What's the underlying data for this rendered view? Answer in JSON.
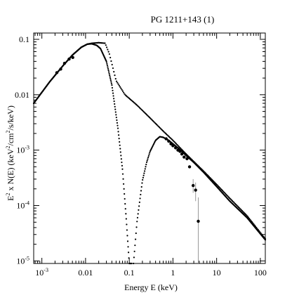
{
  "chart_data": {
    "type": "scatter",
    "title": "PG 1211+143 (1)",
    "xlabel": "Energy E (keV)",
    "ylabel_parts": [
      "E",
      "2",
      " x N(E) (keV",
      "2",
      "/cm",
      "2",
      "/s/keV)"
    ],
    "xscale": "log",
    "yscale": "log",
    "xlim": [
      0.00065,
      130
    ],
    "ylim": [
      9e-06,
      0.13
    ],
    "x_ticks": [
      {
        "value": 0.001,
        "base": "10",
        "exp": "-3"
      },
      {
        "value": 0.01,
        "label": "0.01"
      },
      {
        "value": 0.1,
        "label": "0.1"
      },
      {
        "value": 1,
        "label": "1"
      },
      {
        "value": 10,
        "label": "10"
      },
      {
        "value": 100,
        "label": "100"
      }
    ],
    "y_ticks": [
      {
        "value": 1e-05,
        "base": "10",
        "exp": "-5"
      },
      {
        "value": 0.0001,
        "base": "10",
        "exp": "-4"
      },
      {
        "value": 0.001,
        "base": "10",
        "exp": "-3"
      },
      {
        "value": 0.01,
        "label": "0.01"
      },
      {
        "value": 0.1,
        "label": "0.1"
      }
    ],
    "grid": false,
    "series": [
      {
        "style": "dotted-curve",
        "x": [
          0.00065,
          0.0015,
          0.003,
          0.005,
          0.008,
          0.011,
          0.014,
          0.02,
          0.028,
          0.035,
          0.05,
          0.08,
          0.15,
          0.3,
          0.6,
          1.0,
          2.0,
          5.0,
          10,
          20,
          50,
          130
        ],
        "y": [
          0.007,
          0.017,
          0.033,
          0.052,
          0.072,
          0.082,
          0.085,
          0.087,
          0.085,
          0.055,
          0.018,
          0.01,
          0.0065,
          0.0038,
          0.0022,
          0.0015,
          0.00085,
          0.00042,
          0.00024,
          0.000135,
          6.5e-05,
          2.5e-05
        ]
      },
      {
        "style": "dotted-curve",
        "x": [
          0.00065,
          0.0015,
          0.003,
          0.005,
          0.008,
          0.011,
          0.014,
          0.018,
          0.022,
          0.03,
          0.04,
          0.055,
          0.07,
          0.085,
          0.1,
          0.115
        ],
        "y": [
          0.007,
          0.017,
          0.033,
          0.052,
          0.072,
          0.082,
          0.083,
          0.078,
          0.068,
          0.04,
          0.015,
          0.0025,
          0.00045,
          6e-05,
          9e-06,
          9e-06
        ]
      },
      {
        "style": "dotted-curve",
        "x": [
          0.125,
          0.15,
          0.2,
          0.25,
          0.3,
          0.4,
          0.5,
          0.6,
          0.8,
          1.0,
          1.5,
          2.0,
          3.0,
          5.0,
          10,
          20,
          50,
          130
        ],
        "y": [
          9e-06,
          5e-05,
          0.00028,
          0.0006,
          0.00095,
          0.0015,
          0.00175,
          0.0017,
          0.0015,
          0.0013,
          0.001,
          0.0008,
          0.0006,
          0.0004,
          0.00022,
          0.00012,
          6e-05,
          2.4e-05
        ]
      },
      {
        "style": "data-points",
        "x": [
          0.0022,
          0.0027,
          0.0033,
          0.0042,
          0.0051,
          0.7,
          0.8,
          0.9,
          1.0,
          1.15,
          1.3,
          1.45,
          1.6,
          1.8,
          2.1,
          2.4,
          2.9,
          3.3,
          3.8
        ],
        "y": [
          0.025,
          0.029,
          0.037,
          0.044,
          0.047,
          0.0016,
          0.00145,
          0.0013,
          0.0012,
          0.0011,
          0.001,
          0.00095,
          0.00085,
          0.00075,
          0.0007,
          0.0005,
          0.00023,
          0.00019,
          5.2e-05
        ],
        "yerr_low": [
          null,
          null,
          null,
          null,
          null,
          null,
          null,
          null,
          null,
          null,
          null,
          null,
          null,
          null,
          null,
          null,
          0.00017,
          0.00012,
          9e-06
        ],
        "yerr_high": [
          null,
          null,
          null,
          null,
          null,
          null,
          null,
          null,
          null,
          null,
          null,
          null,
          null,
          null,
          null,
          null,
          0.0003,
          0.00026,
          0.00014
        ]
      }
    ]
  }
}
